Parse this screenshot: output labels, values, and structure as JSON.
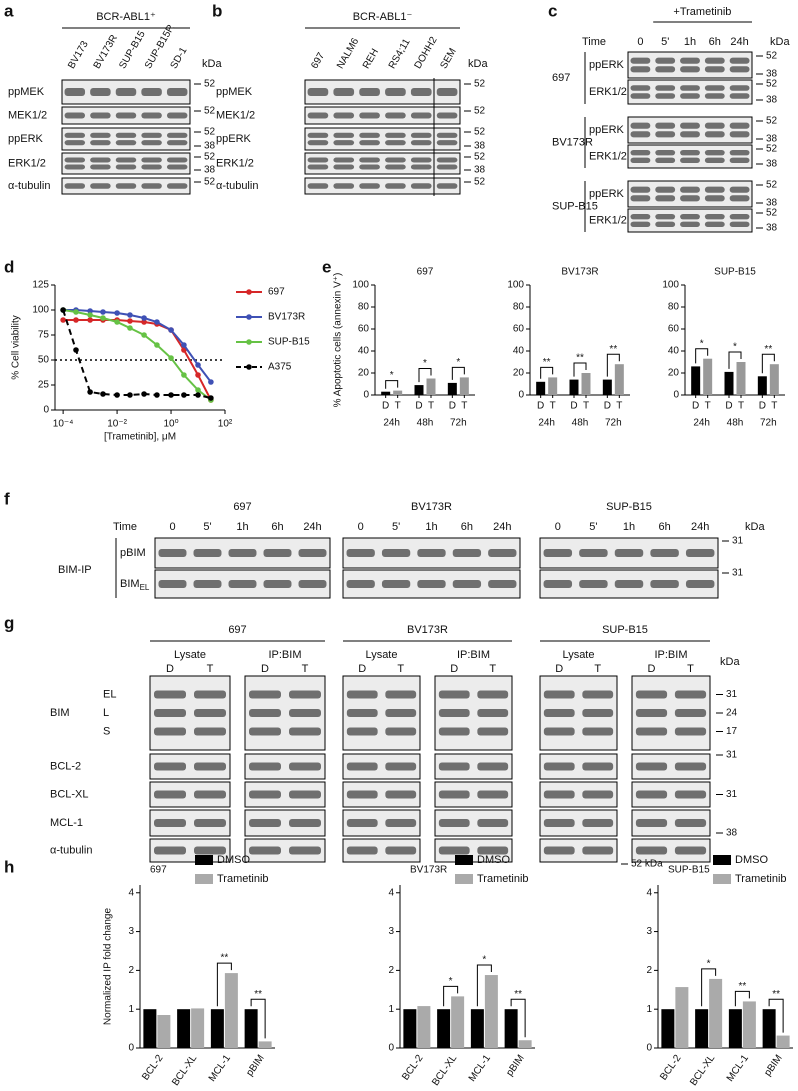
{
  "panel_labels": [
    "a",
    "b",
    "c",
    "d",
    "e",
    "f",
    "g",
    "h"
  ],
  "blot_a": {
    "header": "BCR-ABL1⁺",
    "lanes": [
      "BV173",
      "BV173R",
      "SUP-B15",
      "SUP-B15R",
      "SD-1"
    ],
    "kda": "kDa",
    "rows": [
      {
        "label": "ppMEK",
        "markers": [
          52
        ]
      },
      {
        "label": "MEK1/2",
        "markers": [
          52
        ]
      },
      {
        "label": "ppERK",
        "markers": [
          52,
          38
        ]
      },
      {
        "label": "ERK1/2",
        "markers": [
          52,
          38
        ]
      },
      {
        "label": "α-tubulin",
        "markers": [
          52
        ]
      }
    ]
  },
  "blot_b": {
    "header": "BCR-ABL1⁻",
    "lanes": [
      "697",
      "NALM6",
      "REH",
      "RS4;11",
      "DOHH2",
      "SEM"
    ],
    "kda": "kDa",
    "rows": [
      {
        "label": "ppMEK",
        "markers": [
          52
        ]
      },
      {
        "label": "MEK1/2",
        "markers": [
          52
        ]
      },
      {
        "label": "ppERK",
        "markers": [
          52,
          38
        ]
      },
      {
        "label": "ERK1/2",
        "markers": [
          52,
          38
        ]
      },
      {
        "label": "α-tubulin",
        "markers": [
          52
        ]
      }
    ]
  },
  "blot_c": {
    "header": "+Trametinib",
    "time": "Time",
    "lanes": [
      "0",
      "5'",
      "1h",
      "6h",
      "24h"
    ],
    "kda": "kDa",
    "groups": [
      {
        "name": "697",
        "rows": [
          {
            "label": "ppERK",
            "markers": [
              52,
              38
            ]
          },
          {
            "label": "ERK1/2",
            "markers": [
              52,
              38
            ]
          }
        ]
      },
      {
        "name": "BV173R",
        "rows": [
          {
            "label": "ppERK",
            "markers": [
              52,
              38
            ]
          },
          {
            "label": "ERK1/2",
            "markers": [
              52,
              38
            ]
          }
        ]
      },
      {
        "name": "SUP-B15",
        "rows": [
          {
            "label": "ppERK",
            "markers": [
              52,
              38
            ]
          },
          {
            "label": "ERK1/2",
            "markers": [
              52,
              38
            ]
          }
        ]
      }
    ]
  },
  "blot_f": {
    "time": "Time",
    "kda": "kDa",
    "side_label": "BIM-IP",
    "groups": [
      {
        "name": "697",
        "lanes": [
          "0",
          "5'",
          "1h",
          "6h",
          "24h"
        ]
      },
      {
        "name": "BV173R",
        "lanes": [
          "0",
          "5'",
          "1h",
          "6h",
          "24h"
        ]
      },
      {
        "name": "SUP-B15",
        "lanes": [
          "0",
          "5'",
          "1h",
          "6h",
          "24h"
        ]
      }
    ],
    "rows": [
      {
        "label": "pBIM",
        "markers": [
          31
        ]
      },
      {
        "label": "BIM",
        "sub": "EL",
        "markers": [
          31
        ]
      }
    ]
  },
  "blot_g": {
    "kda": "kDa",
    "groups": [
      {
        "name": "697",
        "sections": [
          "Lysate",
          "IP:BIM"
        ],
        "lanes": [
          "D",
          "T"
        ]
      },
      {
        "name": "BV173R",
        "sections": [
          "Lysate",
          "IP:BIM"
        ],
        "lanes": [
          "D",
          "T"
        ]
      },
      {
        "name": "SUP-B15",
        "sections": [
          "Lysate",
          "IP:BIM"
        ],
        "lanes": [
          "D",
          "T"
        ]
      }
    ],
    "rows": [
      {
        "label": "BIM",
        "bands": [
          "EL",
          "L",
          "S"
        ],
        "markers": [
          31,
          24,
          17
        ]
      },
      {
        "label": "BCL-2",
        "markers": [
          31
        ]
      },
      {
        "label": "BCL-XL",
        "markers": [
          31
        ]
      },
      {
        "label": "MCL-1",
        "markers": [
          38
        ]
      },
      {
        "label": "α-tubulin",
        "markers": [
          "52 kDa"
        ]
      }
    ]
  },
  "chart_data": [
    {
      "type": "line",
      "xlabel": "[Trametinib], μM",
      "ylabel": "% Cell viability",
      "log_x": true,
      "x": [
        0.0001,
        0.0003,
        0.001,
        0.003,
        0.01,
        0.03,
        0.1,
        0.3,
        1,
        3,
        10,
        30
      ],
      "xlim": [
        5e-05,
        100
      ],
      "xticks": [
        {
          "value": 0.0001,
          "label": "10⁻⁴"
        },
        {
          "value": 0.01,
          "label": "10⁻²"
        },
        {
          "value": 1,
          "label": "10⁰"
        },
        {
          "value": 100,
          "label": "10²"
        }
      ],
      "ylim": [
        0,
        125
      ],
      "yticks": [
        0,
        25,
        50,
        75,
        100,
        125
      ],
      "reference_line": 50,
      "legend": "right",
      "series": [
        {
          "name": "697",
          "color": "#d62728",
          "values": [
            90,
            90,
            90,
            90,
            90,
            89,
            88,
            86,
            80,
            60,
            35,
            10
          ]
        },
        {
          "name": "BV173R",
          "color": "#3f51b5",
          "values": [
            100,
            100,
            99,
            98,
            97,
            95,
            92,
            88,
            80,
            65,
            45,
            28
          ]
        },
        {
          "name": "SUP-B15",
          "color": "#66c245",
          "values": [
            100,
            98,
            95,
            92,
            88,
            82,
            75,
            65,
            52,
            35,
            20,
            10
          ]
        },
        {
          "name": "A375",
          "color": "#000000",
          "dash": true,
          "values": [
            100,
            60,
            18,
            16,
            15,
            15,
            16,
            15,
            15,
            15,
            15,
            12
          ]
        }
      ]
    },
    {
      "type": "bar",
      "title": "697",
      "ylabel": "% Apoptotic cells (annexin V⁺)",
      "categories": [
        "24h",
        "48h",
        "72h"
      ],
      "series": [
        {
          "name": "D",
          "color": "#000000",
          "values": [
            3,
            9,
            11
          ]
        },
        {
          "name": "T",
          "color": "#999999",
          "values": [
            4,
            15,
            16
          ]
        }
      ],
      "significance": [
        "*",
        "*",
        "*"
      ],
      "ylim": [
        0,
        100
      ],
      "yticks": [
        0,
        20,
        40,
        60,
        80,
        100
      ]
    },
    {
      "type": "bar",
      "title": "BV173R",
      "categories": [
        "24h",
        "48h",
        "72h"
      ],
      "series": [
        {
          "name": "D",
          "color": "#000000",
          "values": [
            12,
            14,
            14
          ]
        },
        {
          "name": "T",
          "color": "#999999",
          "values": [
            16,
            20,
            28
          ]
        }
      ],
      "significance": [
        "**",
        "**",
        "**"
      ],
      "ylim": [
        0,
        100
      ],
      "yticks": [
        0,
        20,
        40,
        60,
        80,
        100
      ]
    },
    {
      "type": "bar",
      "title": "SUP-B15",
      "categories": [
        "24h",
        "48h",
        "72h"
      ],
      "series": [
        {
          "name": "D",
          "color": "#000000",
          "values": [
            26,
            21,
            17
          ]
        },
        {
          "name": "T",
          "color": "#999999",
          "values": [
            33,
            30,
            28
          ]
        }
      ],
      "significance": [
        "*",
        "*",
        "**"
      ],
      "ylim": [
        0,
        100
      ],
      "yticks": [
        0,
        20,
        40,
        60,
        80,
        100
      ]
    },
    {
      "type": "bar",
      "title": "697",
      "ylabel": "Normalized IP fold change",
      "categories": [
        "BCL-2",
        "BCL-XL",
        "MCL-1",
        "pBIM"
      ],
      "legend": "top-right",
      "series": [
        {
          "name": "DMSO",
          "color": "#000000",
          "values": [
            1,
            1,
            1,
            1
          ]
        },
        {
          "name": "Trametinib",
          "color": "#aaaaaa",
          "values": [
            0.85,
            1.02,
            1.93,
            0.17
          ]
        }
      ],
      "significance": [
        null,
        null,
        "**",
        "**"
      ],
      "ylim": [
        0,
        4.2
      ],
      "yticks": [
        0,
        1,
        2,
        3,
        4
      ]
    },
    {
      "type": "bar",
      "title": "BV173R",
      "categories": [
        "BCL-2",
        "BCL-XL",
        "MCL-1",
        "pBIM"
      ],
      "legend": "top-right",
      "series": [
        {
          "name": "DMSO",
          "color": "#000000",
          "values": [
            1,
            1,
            1,
            1
          ]
        },
        {
          "name": "Trametinib",
          "color": "#aaaaaa",
          "values": [
            1.08,
            1.33,
            1.88,
            0.2
          ]
        }
      ],
      "significance": [
        null,
        "*",
        "*",
        "**"
      ],
      "ylim": [
        0,
        4.2
      ],
      "yticks": [
        0,
        1,
        2,
        3,
        4
      ]
    },
    {
      "type": "bar",
      "title": "SUP-B15",
      "categories": [
        "BCL-2",
        "BCL-XL",
        "MCL-1",
        "pBIM"
      ],
      "legend": "top-right",
      "series": [
        {
          "name": "DMSO",
          "color": "#000000",
          "values": [
            1,
            1,
            1,
            1
          ]
        },
        {
          "name": "Trametinib",
          "color": "#aaaaaa",
          "values": [
            1.57,
            1.78,
            1.2,
            0.32
          ]
        }
      ],
      "significance": [
        null,
        "*",
        "**",
        "**"
      ],
      "ylim": [
        0,
        4.2
      ],
      "yticks": [
        0,
        1,
        2,
        3,
        4
      ]
    }
  ]
}
